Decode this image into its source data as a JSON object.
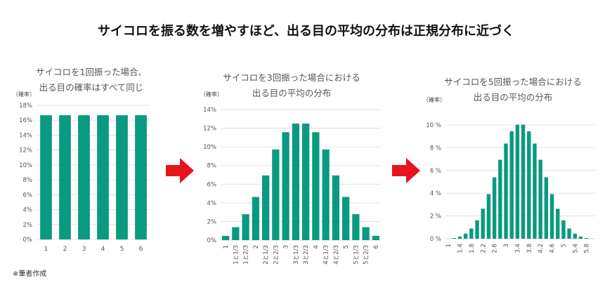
{
  "title": "サイコロを振る数を増やすほど、出る目の平均の分布は正規分布に近づく",
  "note": "※筆者作成",
  "arrow_color": "#e8141b",
  "bar_color": "#0a9a7f",
  "chart_data": [
    {
      "type": "bar",
      "title_lines": [
        "サイコロを1回振った場合、",
        "出る目の確率はすべて同じ"
      ],
      "ylabel": "（確率）",
      "ylim": [
        0,
        18
      ],
      "yticks": [
        0,
        2,
        4,
        6,
        8,
        10,
        12,
        14,
        16,
        18
      ],
      "ytick_suffix": "%",
      "grid": true,
      "categories": [
        "1",
        "2",
        "3",
        "4",
        "5",
        "6"
      ],
      "xtick_labels": [
        "1",
        "2",
        "3",
        "4",
        "5",
        "6"
      ],
      "values": [
        16.67,
        16.67,
        16.67,
        16.67,
        16.67,
        16.67
      ]
    },
    {
      "type": "bar",
      "title_lines": [
        "サイコロを3回振った場合における",
        "出る目の平均の分布"
      ],
      "ylabel": "（確率）",
      "ylim": [
        0,
        14
      ],
      "yticks": [
        0,
        2,
        4,
        6,
        8,
        10,
        12,
        14
      ],
      "ytick_suffix": "%",
      "grid": true,
      "categories": [
        "1",
        "1と1/3",
        "1と2/3",
        "2",
        "2と1/3",
        "2と2/3",
        "3",
        "3と1/3",
        "3と2/3",
        "4",
        "4と1/3",
        "4と2/3",
        "5",
        "5と1/3",
        "5と2/3",
        "6"
      ],
      "xtick_labels": [
        "1",
        "1と1/3",
        "1と2/3",
        "2",
        "2と1/3",
        "2と2/3",
        "3",
        "3と1/3",
        "3と2/3",
        "4",
        "4と1/3",
        "4と2/3",
        "5",
        "5と1/3",
        "5と2/3",
        "6"
      ],
      "values": [
        0.46,
        1.39,
        2.78,
        4.63,
        6.94,
        9.72,
        11.57,
        12.5,
        12.5,
        11.57,
        9.72,
        6.94,
        4.63,
        2.78,
        1.39,
        0.46
      ]
    },
    {
      "type": "bar",
      "title_lines": [
        "サイコロを5回振った場合における",
        "出る目の平均の分布"
      ],
      "ylabel": "（確率）",
      "ylim": [
        0,
        10
      ],
      "yticks": [
        0,
        2,
        4,
        6,
        8,
        10
      ],
      "ytick_suffix": " %",
      "grid": true,
      "categories": [
        "1",
        "1.2",
        "1.4",
        "1.6",
        "1.8",
        "2",
        "2.2",
        "2.4",
        "2.6",
        "2.8",
        "3",
        "3.2",
        "3.4",
        "3.6",
        "3.8",
        "4",
        "4.2",
        "4.4",
        "4.6",
        "4.8",
        "5",
        "5.2",
        "5.4",
        "5.6",
        "5.8",
        "6"
      ],
      "xtick_labels": [
        "1",
        "",
        "1.4",
        "",
        "1.8",
        "",
        "2.2",
        "",
        "2.6",
        "",
        "3",
        "",
        "3.4",
        "",
        "3.8",
        "",
        "4.2",
        "",
        "4.6",
        "",
        "5",
        "",
        "5.4",
        "",
        "5.8",
        ""
      ],
      "values": [
        0.01,
        0.06,
        0.19,
        0.45,
        0.9,
        1.62,
        2.64,
        3.92,
        5.4,
        6.94,
        8.37,
        9.45,
        10.03,
        10.03,
        9.45,
        8.37,
        6.94,
        5.4,
        3.92,
        2.64,
        1.62,
        0.9,
        0.45,
        0.19,
        0.06,
        0.01
      ]
    }
  ]
}
